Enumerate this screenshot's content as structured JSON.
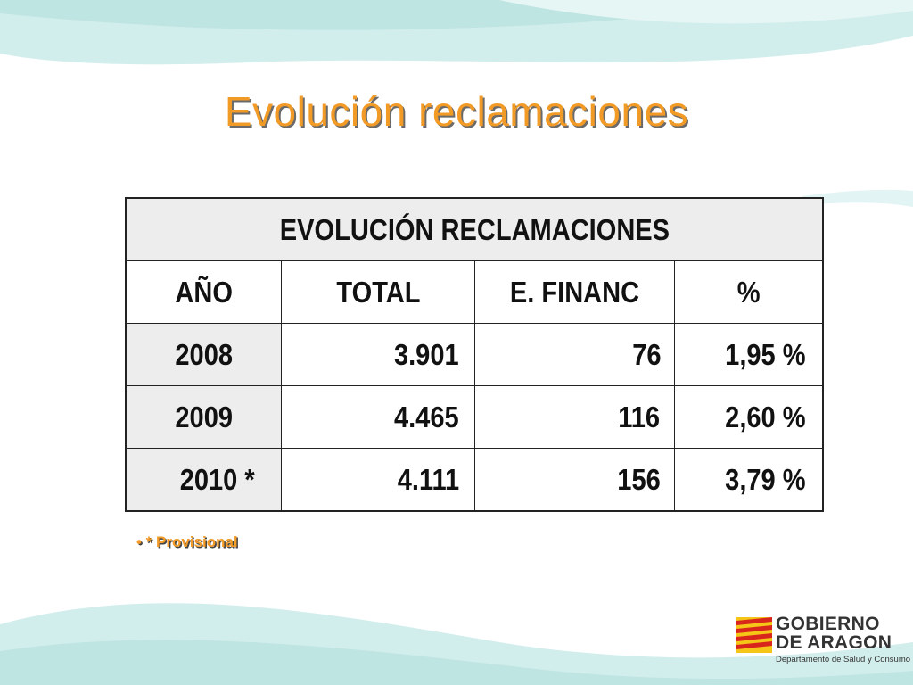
{
  "slide": {
    "title": "Evolución reclamaciones",
    "note": "• * Provisional"
  },
  "table": {
    "caption": "EVOLUCIÓN RECLAMACIONES",
    "headers": [
      "AÑO",
      "TOTAL",
      "E. FINANC",
      "%"
    ],
    "rows": [
      [
        "2008",
        "3.901",
        "76",
        "1,95 %"
      ],
      [
        "2009",
        "4.465",
        "116",
        "2,60 %"
      ],
      [
        "2010 *",
        "4.111",
        "156",
        "3,79 %"
      ]
    ]
  },
  "logo": {
    "line1": "GOBIERNO",
    "line2": "DE ARAGON",
    "subtitle": "Departamento de Salud y Consumo"
  },
  "colors": {
    "title": "#f29a26",
    "wave": "#bfe5e3",
    "flag_red": "#d9261c",
    "flag_yellow": "#f5c518"
  }
}
